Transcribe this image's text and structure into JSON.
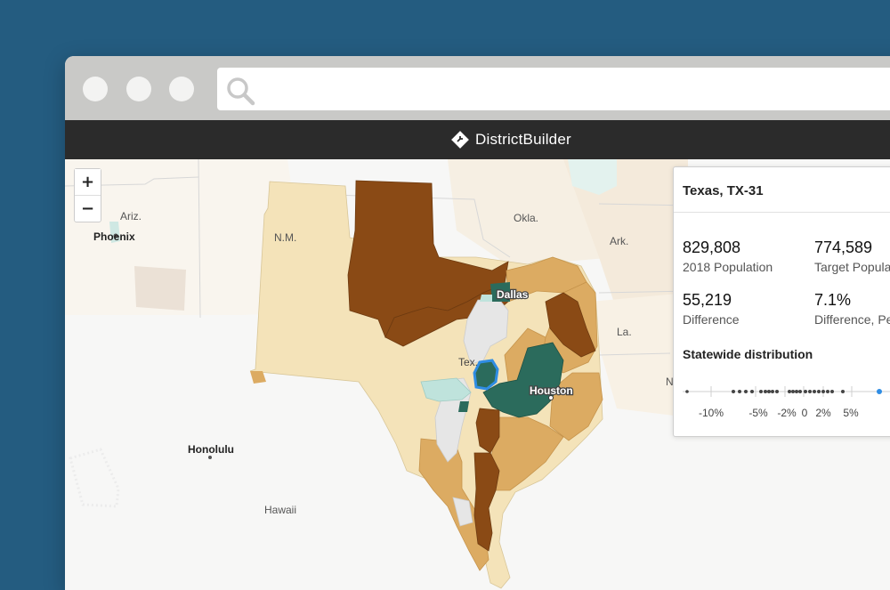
{
  "browser": {
    "address_value": ""
  },
  "app": {
    "brand": "DistrictBuilder"
  },
  "map": {
    "zoom_in_label": "+",
    "zoom_out_label": "−",
    "labels": {
      "ariz": "Ariz.",
      "phoenix": "Phoenix",
      "nm": "N.M.",
      "okla": "Okla.",
      "ark": "Ark.",
      "la": "La.",
      "dallas": "Dallas",
      "tex": "Tex.",
      "houston": "Houston",
      "honolulu": "Honolulu",
      "hawaii": "Hawaii",
      "n_partial": "N"
    },
    "colors": {
      "dark_brown": "#8a4a15",
      "tan": "#dcab62",
      "light_tan": "#f4e3b9",
      "teal": "#2b6b5c",
      "light_teal": "#bfe3dc",
      "gray": "#e6e6e6",
      "selected_outline": "#2f8de4"
    }
  },
  "panel": {
    "title": "Texas, TX-31",
    "population": {
      "value": "829,808",
      "label": "2018 Population"
    },
    "target": {
      "value": "774,589",
      "label": "Target Population"
    },
    "difference": {
      "value": "55,219",
      "label": "Difference"
    },
    "difference_pct": {
      "value": "7.1%",
      "label": "Difference, Percent"
    },
    "distribution": {
      "title": "Statewide distribution",
      "ticks": [
        "-10%",
        "-5%",
        "-2%",
        "0",
        "2%",
        "5%"
      ],
      "highlight_color": "#2f8de4"
    }
  }
}
